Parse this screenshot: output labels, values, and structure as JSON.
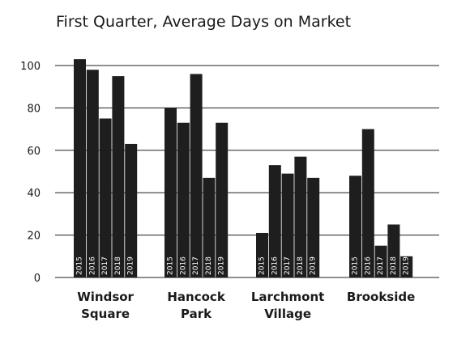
{
  "chart_data": {
    "type": "bar",
    "title": "First Quarter, Average Days on Market",
    "xlabel": "",
    "ylabel": "",
    "ylim": [
      0,
      100
    ],
    "yticks": [
      0,
      20,
      40,
      60,
      80,
      100
    ],
    "grid": true,
    "bar_color": "#1e1e1e",
    "grid_color": "#1e1e1e",
    "groups": [
      {
        "name": [
          "Windsor",
          "Square"
        ],
        "bars": [
          {
            "label": "2015",
            "value": 103
          },
          {
            "label": "2016",
            "value": 98
          },
          {
            "label": "2017",
            "value": 75
          },
          {
            "label": "2018",
            "value": 95
          },
          {
            "label": "2019",
            "value": 63
          }
        ]
      },
      {
        "name": [
          "Hancock",
          "Park"
        ],
        "bars": [
          {
            "label": "2015",
            "value": 80
          },
          {
            "label": "2016",
            "value": 73
          },
          {
            "label": "2017",
            "value": 96
          },
          {
            "label": "2018",
            "value": 47
          },
          {
            "label": "2019",
            "value": 73
          }
        ]
      },
      {
        "name": [
          "Larchmont",
          "Village"
        ],
        "bars": [
          {
            "label": "2015",
            "value": 21
          },
          {
            "label": "2016",
            "value": 53
          },
          {
            "label": "2017",
            "value": 49
          },
          {
            "label": "2018",
            "value": 57
          },
          {
            "label": "2019",
            "value": 47
          }
        ]
      },
      {
        "name": [
          "Brookside"
        ],
        "bars": [
          {
            "label": "2015",
            "value": 48
          },
          {
            "label": "2016",
            "value": 70
          },
          {
            "label": "2017",
            "value": 15
          },
          {
            "label": "2018",
            "value": 25
          },
          {
            "label": "2019",
            "value": 10
          }
        ]
      }
    ]
  }
}
